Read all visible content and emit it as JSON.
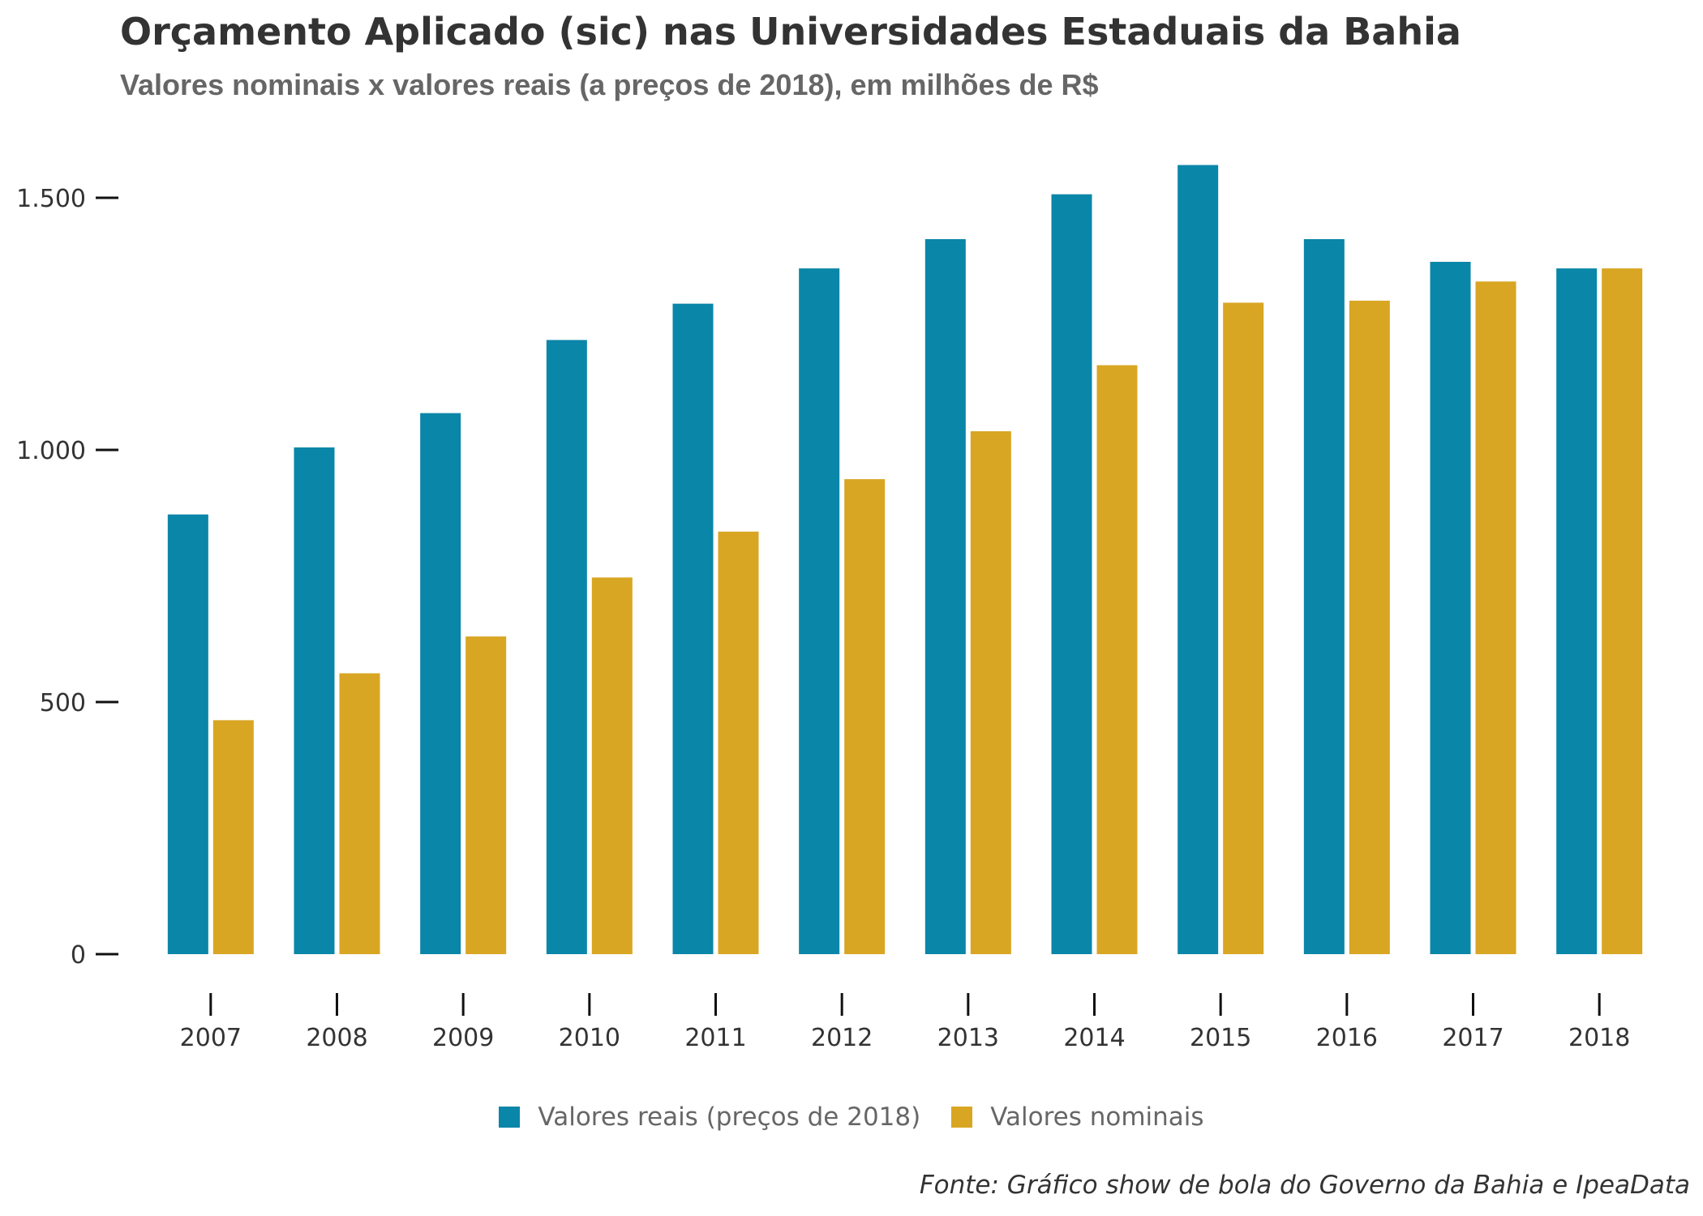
{
  "chart_data": {
    "type": "bar",
    "title": "Orçamento Aplicado (sic) nas Universidades Estaduais da Bahia",
    "subtitle": "Valores nominais x valores reais (a preços de 2018), em milhões de R$",
    "xlabel": "",
    "ylabel": "",
    "categories": [
      "2007",
      "2008",
      "2009",
      "2010",
      "2011",
      "2012",
      "2013",
      "2014",
      "2015",
      "2016",
      "2017",
      "2018"
    ],
    "series": [
      {
        "name": "Valores reais (preços de 2018)",
        "color": "#0A86A8",
        "values": [
          872,
          1005,
          1073,
          1218,
          1290,
          1360,
          1418,
          1507,
          1565,
          1418,
          1373,
          1360
        ]
      },
      {
        "name": "Valores nominais",
        "color": "#D9A623",
        "values": [
          464,
          557,
          630,
          747,
          838,
          942,
          1037,
          1168,
          1292,
          1296,
          1334,
          1360
        ]
      }
    ],
    "ylim": [
      0,
      1700
    ],
    "yticks": [
      0,
      500,
      1000,
      1500
    ],
    "ytick_labels": [
      "0",
      "500",
      "1.000",
      "1.500"
    ],
    "grid": false,
    "legend_position": "bottom"
  },
  "source": "Fonte: Gráfico show de bola do Governo da Bahia e IpeaData"
}
